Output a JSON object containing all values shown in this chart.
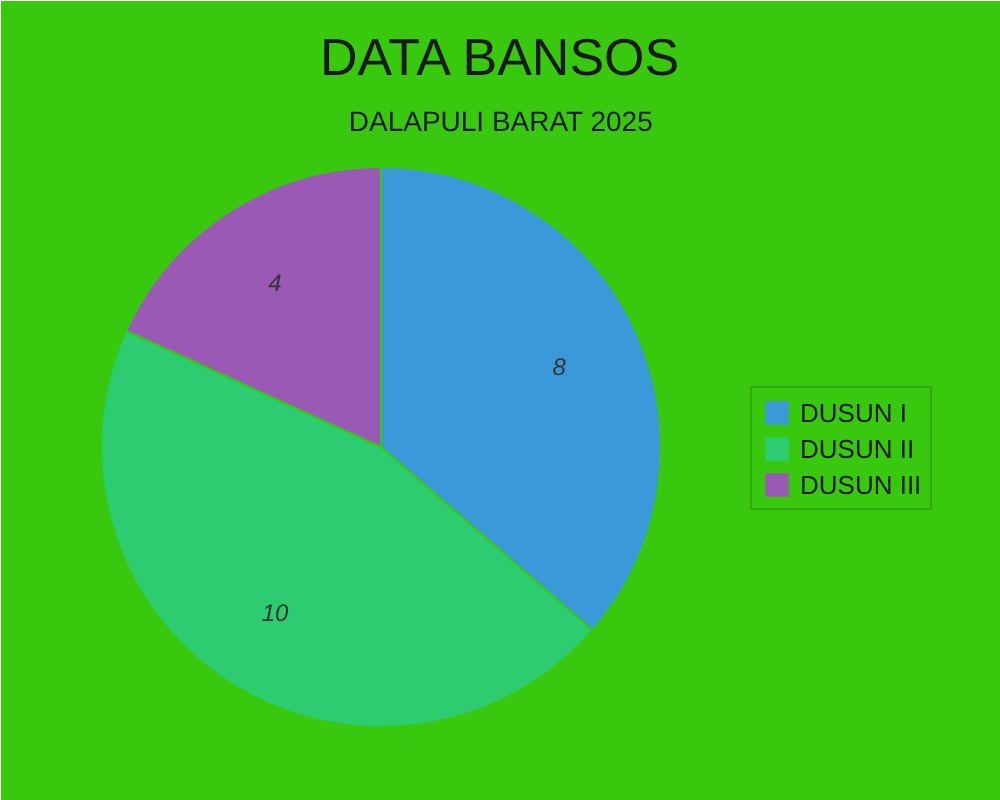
{
  "chart_data": {
    "type": "pie",
    "title": "DATA BANSOS",
    "subtitle": "DALAPULI BARAT 2025",
    "categories": [
      "DUSUN I",
      "DUSUN II",
      "DUSUN III"
    ],
    "values": [
      8,
      10,
      4
    ],
    "colors": [
      "#3a9ad9",
      "#2ecc71",
      "#9b59b6"
    ],
    "data_labels": true,
    "legend": "right"
  }
}
